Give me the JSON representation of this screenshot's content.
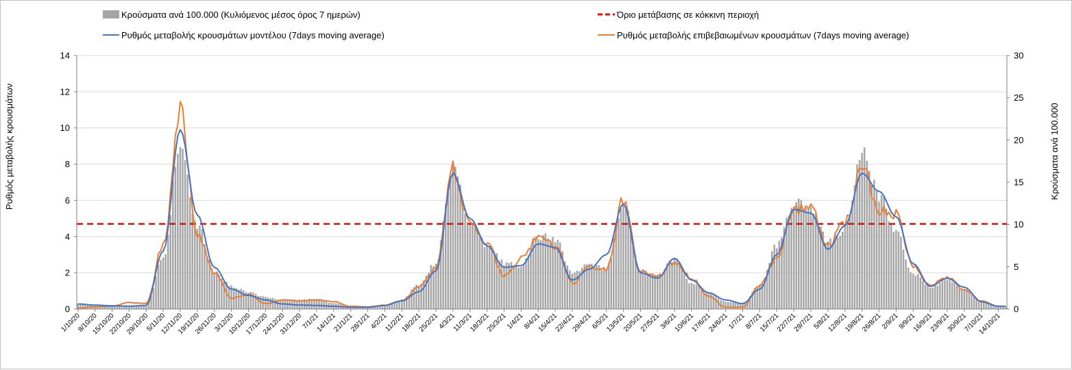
{
  "chart_data": {
    "type": "bar-line-combo",
    "legend": {
      "bars": "Κρούσματα ανά 100.000 (Κυλιόμενος μέσος όρος 7 ημερών)",
      "threshold": "Όριο μετάβασης σε κόκκινη περιοχή",
      "model": "Ρυθμός μεταβολής κρουσμάτων μοντέλου (7days moving average)",
      "confirmed": "Ρυθμός μεταβολής επιβεβαιωμένων κρουσμάτων (7days moving average)"
    },
    "ylabel_left": "Ρυθμός μεταβολής κρουσμάτων",
    "ylabel_right": "Κρούσματα ανά 100.000",
    "ylim_left": [
      0,
      14
    ],
    "ylim_right": [
      0,
      30
    ],
    "yticks_left": [
      "0",
      "2",
      "4",
      "6",
      "8",
      "10",
      "12",
      "14"
    ],
    "yticks_right": [
      "0",
      "5",
      "10",
      "15",
      "20",
      "25",
      "30"
    ],
    "threshold_left": 4.7,
    "xticks": [
      "1/10/20",
      "8/10/20",
      "15/10/20",
      "22/10/20",
      "29/10/20",
      "5/11/20",
      "12/11/20",
      "19/11/20",
      "26/11/20",
      "3/12/20",
      "10/12/20",
      "17/12/20",
      "24/12/20",
      "31/12/20",
      "7/1/21",
      "14/1/21",
      "21/1/21",
      "28/1/21",
      "4/2/21",
      "11/2/21",
      "18/2/21",
      "25/2/21",
      "4/3/21",
      "11/3/21",
      "18/3/21",
      "25/3/21",
      "1/4/21",
      "8/4/21",
      "15/4/21",
      "22/4/21",
      "29/4/21",
      "6/5/21",
      "13/5/21",
      "20/5/21",
      "27/5/21",
      "3/6/21",
      "10/6/21",
      "17/6/21",
      "24/6/21",
      "1/7/21",
      "8/7/21",
      "15/7/21",
      "22/7/21",
      "29/7/21",
      "5/8/21",
      "12/8/21",
      "19/8/21",
      "26/8/21",
      "2/9/21",
      "9/9/21",
      "16/9/21",
      "23/9/21",
      "30/9/21",
      "7/10/21",
      "14/10/21"
    ],
    "model_weekly": [
      0.28,
      0.22,
      0.18,
      0.16,
      0.2,
      3.2,
      9.9,
      5.2,
      2.3,
      1.1,
      0.75,
      0.5,
      0.28,
      0.22,
      0.2,
      0.15,
      0.1,
      0.1,
      0.2,
      0.45,
      0.95,
      2.1,
      7.5,
      5.0,
      3.5,
      2.3,
      2.4,
      3.6,
      3.4,
      1.6,
      2.2,
      3.0,
      5.8,
      2.0,
      1.7,
      2.8,
      1.6,
      0.9,
      0.5,
      0.3,
      1.1,
      3.0,
      5.5,
      5.3,
      3.3,
      4.6,
      7.5,
      6.5,
      5.1,
      2.5,
      1.25,
      1.7,
      1.2,
      0.4,
      0.15
    ],
    "confirmed_weekly": [
      0.05,
      0.12,
      0.15,
      0.35,
      0.3,
      3.5,
      11.0,
      4.2,
      2.0,
      0.6,
      0.8,
      0.3,
      0.5,
      0.45,
      0.5,
      0.4,
      0.15,
      0.12,
      0.22,
      0.45,
      1.2,
      2.2,
      7.8,
      4.6,
      3.7,
      1.8,
      2.8,
      3.9,
      3.5,
      1.4,
      2.3,
      2.2,
      6.0,
      2.1,
      1.8,
      2.6,
      1.7,
      0.7,
      0.1,
      0.1,
      1.3,
      2.8,
      5.4,
      5.6,
      3.5,
      4.8,
      7.8,
      5.5,
      5.3,
      2.4,
      1.3,
      1.75,
      1.1,
      0.45,
      0.15
    ],
    "cases_weekly": [
      0.6,
      0.5,
      0.4,
      0.35,
      0.45,
      6.0,
      20.0,
      10.0,
      4.5,
      2.7,
      2.0,
      1.4,
      1.0,
      1.1,
      1.2,
      0.7,
      0.3,
      0.3,
      0.5,
      1.1,
      2.9,
      5.5,
      17.0,
      10.0,
      7.5,
      5.5,
      5.2,
      8.5,
      8.3,
      4.3,
      5.2,
      4.8,
      13.0,
      4.5,
      4.0,
      5.8,
      3.0,
      1.9,
      0.9,
      0.7,
      2.8,
      7.5,
      12.5,
      12.0,
      8.0,
      9.5,
      18.5,
      13.5,
      9.0,
      4.2,
      2.6,
      3.4,
      2.4,
      0.8,
      0.25
    ]
  }
}
